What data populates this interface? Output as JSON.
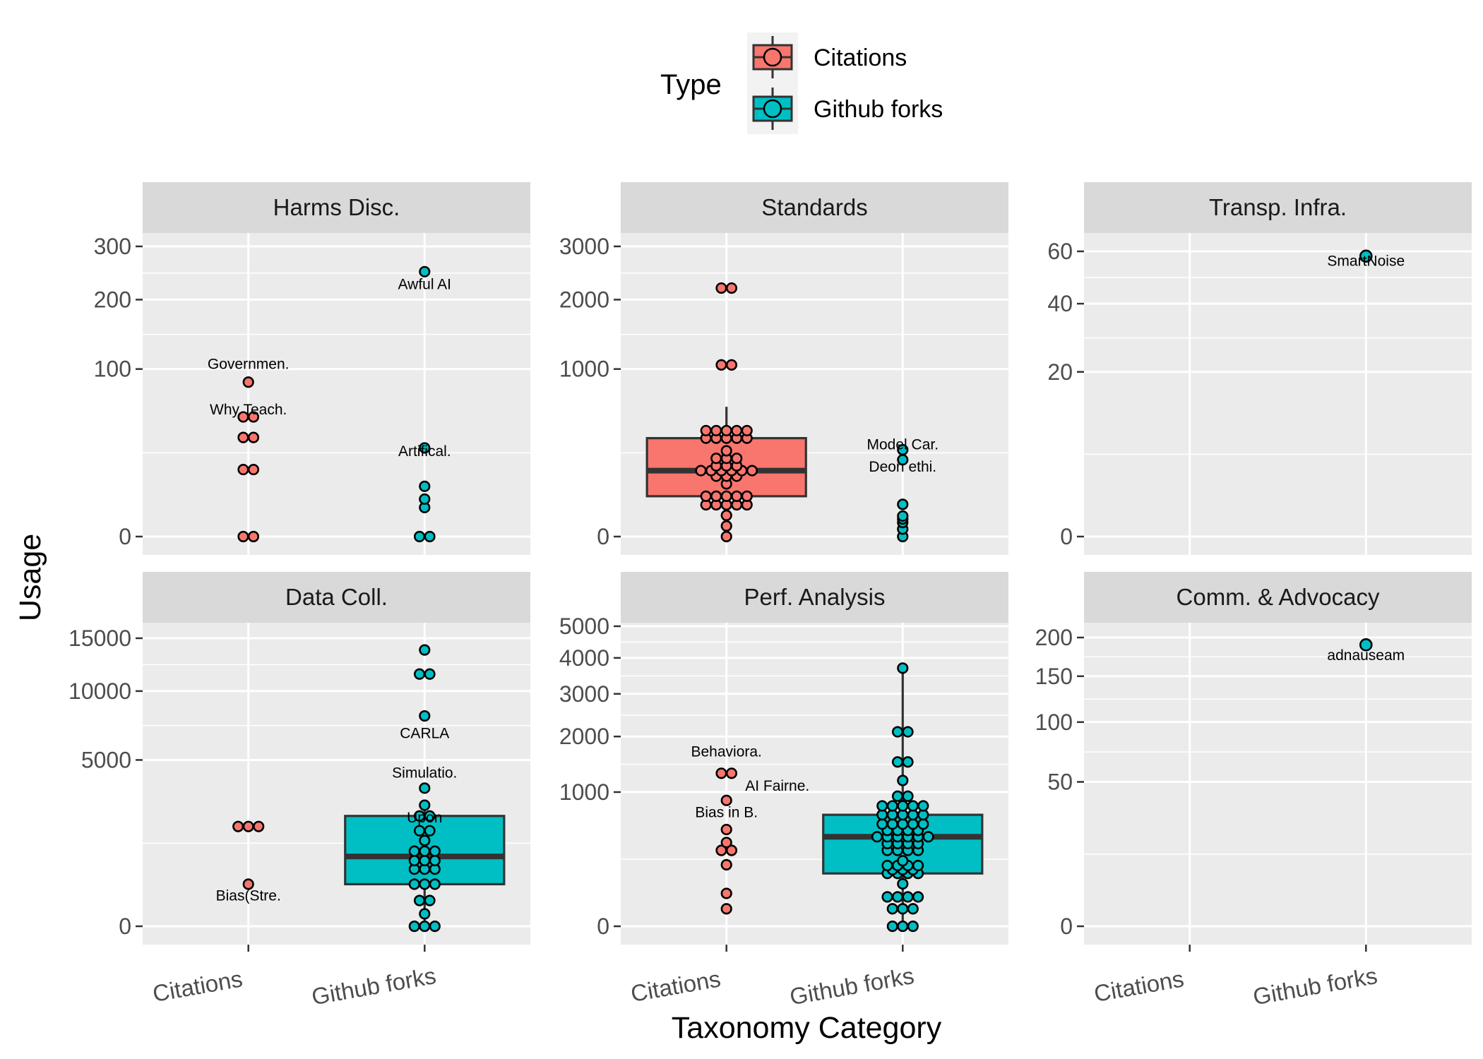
{
  "chart_data": {
    "type": "boxplot+dotplot",
    "xlabel": "Taxonomy Category",
    "ylabel": "Usage",
    "y_scale": "sqrt",
    "grid": true,
    "legend": {
      "title": "Type",
      "position": "top",
      "entries": [
        {
          "label": "Citations",
          "color": "#F8766D"
        },
        {
          "label": "Github forks",
          "color": "#00BFC4"
        }
      ]
    },
    "categories": [
      "Citations",
      "Github forks"
    ],
    "colors": {
      "Citations": "#F8766D",
      "Github forks": "#00BFC4"
    },
    "facets": [
      {
        "title": "Harms Disc.",
        "yticks": [
          0,
          100,
          200,
          300
        ],
        "ylim": [
          0,
          342
        ],
        "series": [
          {
            "name": "Citations",
            "box": null,
            "values": [
              0,
              0,
              16,
              16,
              35,
              35,
              51,
              51,
              85
            ]
          },
          {
            "name": "Github forks",
            "box": null,
            "values": [
              0,
              0,
              3,
              5,
              9,
              28,
              250
            ]
          }
        ],
        "annotations": [
          {
            "text": "Governmen.",
            "x": "Citations",
            "y": 100
          },
          {
            "text": "Why Teach.",
            "y": 53,
            "x": "Citations"
          },
          {
            "text": "Awful AI",
            "x": "Github forks",
            "y": 218
          },
          {
            "text": "Artifical.",
            "x": "Github forks",
            "y": 23
          }
        ]
      },
      {
        "title": "Standards",
        "yticks": [
          0,
          1000,
          2000,
          3000
        ],
        "ylim": [
          0,
          3930
        ],
        "series": [
          {
            "name": "Citations",
            "box": {
              "q1": 58,
              "median": 155,
              "q3": 345,
              "lower": 0,
              "upper": 600
            },
            "values": [
              0,
              4,
              16,
              36,
              36,
              36,
              36,
              36,
              58,
              58,
              58,
              58,
              58,
              99,
              130,
              130,
              130,
              155,
              155,
              155,
              155,
              155,
              155,
              178,
              178,
              178,
              218,
              218,
              218,
              262,
              345,
              345,
              345,
              345,
              345,
              400,
              400,
              400,
              400,
              400,
              1050,
              1050,
              2200,
              2200
            ]
          },
          {
            "name": "Github forks",
            "box": null,
            "values": [
              0,
              2,
              7,
              11,
              15,
              37,
              210,
              268
            ]
          }
        ],
        "annotations": [
          {
            "text": "Model Car.",
            "x": "Github forks",
            "y": 270
          },
          {
            "text": "Deon ethi.",
            "x": "Github forks",
            "y": 150
          }
        ]
      },
      {
        "title": "Transp. Infra.",
        "yticks": [
          0,
          20,
          40,
          60
        ],
        "ylim": [
          0,
          80
        ],
        "series": [
          {
            "name": "Citations",
            "box": null,
            "values": []
          },
          {
            "name": "Github forks",
            "box": null,
            "values": [
              58
            ]
          }
        ],
        "annotations": [
          {
            "text": "SmartNoise",
            "x": "Github forks",
            "y": 54
          }
        ]
      },
      {
        "title": "Data Coll.",
        "yticks": [
          0,
          5000,
          10000,
          15000
        ],
        "ylim": [
          0,
          19600
        ],
        "series": [
          {
            "name": "Citations",
            "box": null,
            "values": [
              320,
              1800,
              1800,
              1800
            ]
          },
          {
            "name": "Github forks",
            "box": {
              "q1": 320,
              "median": 880,
              "q3": 2200,
              "lower": 0,
              "upper": 2900
            },
            "values": [
              0,
              0,
              0,
              28,
              120,
              120,
              320,
              320,
              320,
              590,
              590,
              590,
              780,
              780,
              780,
              1020,
              1020,
              1020,
              1330,
              1650,
              1650,
              2200,
              2200,
              2650,
              3450,
              8000,
              11500,
              11500,
              13800
            ]
          }
        ],
        "annotations": [
          {
            "text": "CARLA",
            "x": "Github forks",
            "y": 6400
          },
          {
            "text": "Simulatio.",
            "x": "Github forks",
            "y": 4000
          },
          {
            "text": "Upon",
            "x": "Github forks",
            "y": 1950
          },
          {
            "text": "Bias(Stre.",
            "x": "Citations",
            "y": 120
          }
        ]
      },
      {
        "title": "Perf. Analysis",
        "yticks": [
          0,
          1000,
          2000,
          3000,
          4000,
          5000
        ],
        "ylim": [
          0,
          5900
        ],
        "series": [
          {
            "name": "Citations",
            "box": null,
            "values": [
              17,
              60,
              210,
              320,
              320,
              390,
              520,
              880,
              1300,
              1300
            ]
          },
          {
            "name": "Github forks",
            "box": {
              "q1": 155,
              "median": 445,
              "q3": 690,
              "lower": 0,
              "upper": 3700
            },
            "values": [
              0,
              0,
              0,
              17,
              17,
              17,
              48,
              48,
              48,
              48,
              100,
              155,
              155,
              155,
              155,
              178,
              178,
              178,
              205,
              205,
              205,
              205,
              238,
              320,
              320,
              320,
              320,
              380,
              380,
              380,
              380,
              445,
              445,
              445,
              445,
              445,
              445,
              510,
              510,
              510,
              510,
              580,
              580,
              580,
              580,
              580,
              690,
              690,
              690,
              690,
              690,
              805,
              805,
              805,
              805,
              805,
              940,
              940,
              1180,
              1500,
              1500,
              2100,
              2100,
              3700
            ]
          }
        ],
        "annotations": [
          {
            "text": "Behaviora.",
            "x": "Citations",
            "y": 1600
          },
          {
            "text": "AI Fairne.",
            "x": "Citations",
            "y": 1020
          },
          {
            "text": "Bias in B.",
            "x": "Citations",
            "y": 660
          }
        ]
      },
      {
        "title": "Comm. & Advocacy",
        "yticks": [
          0,
          50,
          100,
          150,
          200
        ],
        "ylim": [
          0,
          250
        ],
        "series": [
          {
            "name": "Citations",
            "box": null,
            "values": []
          },
          {
            "name": "Github forks",
            "box": null,
            "values": [
              190
            ]
          }
        ],
        "annotations": [
          {
            "text": "adnauseam",
            "x": "Github forks",
            "y": 170
          }
        ]
      }
    ]
  }
}
